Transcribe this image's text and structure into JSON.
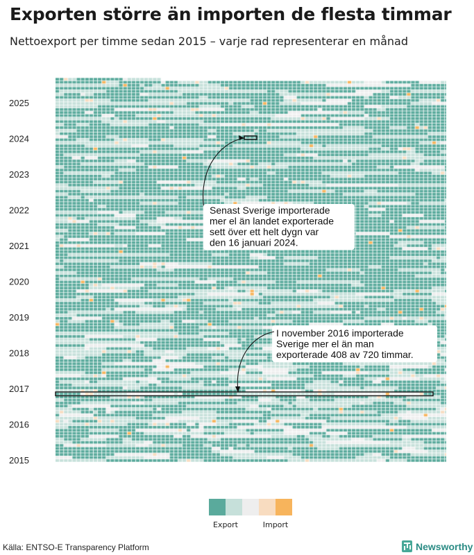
{
  "title": "Exporten större än importen de flesta timmar",
  "subtitle": "Nettoexport per timme sedan 2015 – varje rad representerar en månad",
  "source": "Källa: ENTSO-E Transparency Platform",
  "brand": "Newsworthy",
  "chart_data": {
    "type": "heatmap",
    "rows": "month (January 2015 – mid 2025)",
    "columns": "hour of month (up to 744)",
    "y_tick_labels": [
      "2025",
      "2024",
      "2023",
      "2022",
      "2021",
      "2020",
      "2019",
      "2018",
      "2017",
      "2016",
      "2015"
    ],
    "legend": {
      "colors": [
        "#5aaa9c",
        "#c6e0da",
        "#eeeeee",
        "#f8dcc0",
        "#f7b45c"
      ],
      "labels": [
        "Export",
        "Import"
      ]
    },
    "annotations": [
      {
        "text": "Senast Sverige importerade mer el än landet exporterade sett över ett helt dygn var den 16 januari 2024.",
        "lines": [
          "Senast Sverige importerade",
          "mer el än landet exporterade",
          "sett över ett helt dygn var",
          "den 16 januari 2024."
        ]
      },
      {
        "text": "I november 2016 importerade Sverige mer el än man exporterade 408 av 720 timmar.",
        "lines": [
          "I november 2016 importerade",
          "Sverige mer el än man",
          "exporterade 408 av 720 timmar."
        ]
      }
    ],
    "highlights": [
      {
        "label": "16 januari 2024",
        "year": 2024,
        "month": 1,
        "day": 16
      },
      {
        "label": "november 2016",
        "year": 2016,
        "month": 11,
        "import_hours": 408,
        "total_hours": 720
      }
    ]
  }
}
